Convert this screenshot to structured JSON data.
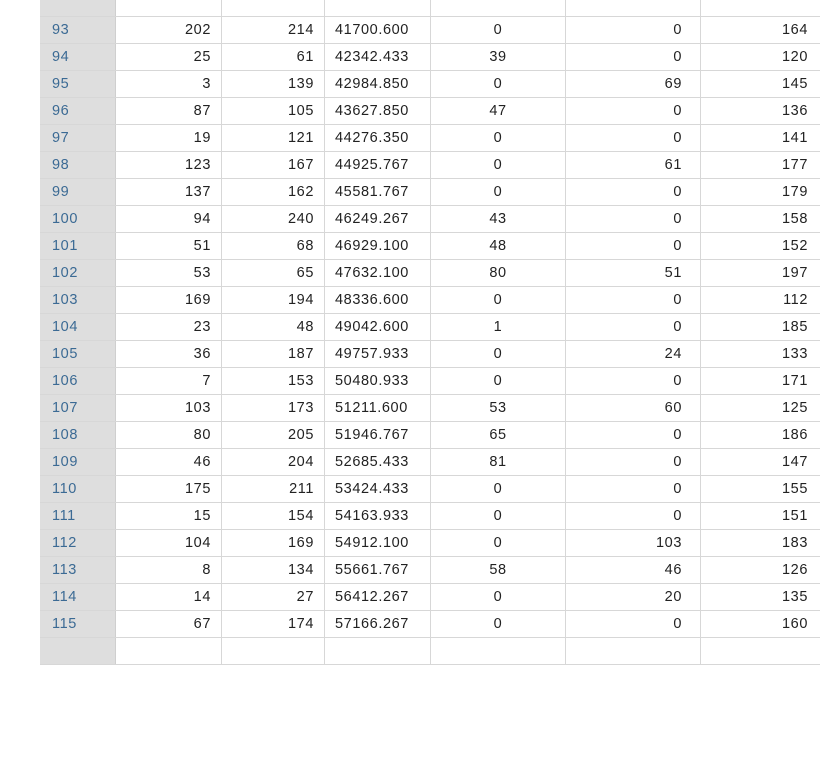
{
  "table": {
    "rows": [
      {
        "idx": "93",
        "a": "202",
        "b": "214",
        "c": "41700.600",
        "d": "0",
        "e": "0",
        "f": "164"
      },
      {
        "idx": "94",
        "a": "25",
        "b": "61",
        "c": "42342.433",
        "d": "39",
        "e": "0",
        "f": "120"
      },
      {
        "idx": "95",
        "a": "3",
        "b": "139",
        "c": "42984.850",
        "d": "0",
        "e": "69",
        "f": "145"
      },
      {
        "idx": "96",
        "a": "87",
        "b": "105",
        "c": "43627.850",
        "d": "47",
        "e": "0",
        "f": "136"
      },
      {
        "idx": "97",
        "a": "19",
        "b": "121",
        "c": "44276.350",
        "d": "0",
        "e": "0",
        "f": "141"
      },
      {
        "idx": "98",
        "a": "123",
        "b": "167",
        "c": "44925.767",
        "d": "0",
        "e": "61",
        "f": "177"
      },
      {
        "idx": "99",
        "a": "137",
        "b": "162",
        "c": "45581.767",
        "d": "0",
        "e": "0",
        "f": "179"
      },
      {
        "idx": "100",
        "a": "94",
        "b": "240",
        "c": "46249.267",
        "d": "43",
        "e": "0",
        "f": "158"
      },
      {
        "idx": "101",
        "a": "51",
        "b": "68",
        "c": "46929.100",
        "d": "48",
        "e": "0",
        "f": "152"
      },
      {
        "idx": "102",
        "a": "53",
        "b": "65",
        "c": "47632.100",
        "d": "80",
        "e": "51",
        "f": "197"
      },
      {
        "idx": "103",
        "a": "169",
        "b": "194",
        "c": "48336.600",
        "d": "0",
        "e": "0",
        "f": "112"
      },
      {
        "idx": "104",
        "a": "23",
        "b": "48",
        "c": "49042.600",
        "d": "1",
        "e": "0",
        "f": "185"
      },
      {
        "idx": "105",
        "a": "36",
        "b": "187",
        "c": "49757.933",
        "d": "0",
        "e": "24",
        "f": "133"
      },
      {
        "idx": "106",
        "a": "7",
        "b": "153",
        "c": "50480.933",
        "d": "0",
        "e": "0",
        "f": "171"
      },
      {
        "idx": "107",
        "a": "103",
        "b": "173",
        "c": "51211.600",
        "d": "53",
        "e": "60",
        "f": "125"
      },
      {
        "idx": "108",
        "a": "80",
        "b": "205",
        "c": "51946.767",
        "d": "65",
        "e": "0",
        "f": "186"
      },
      {
        "idx": "109",
        "a": "46",
        "b": "204",
        "c": "52685.433",
        "d": "81",
        "e": "0",
        "f": "147"
      },
      {
        "idx": "110",
        "a": "175",
        "b": "211",
        "c": "53424.433",
        "d": "0",
        "e": "0",
        "f": "155"
      },
      {
        "idx": "111",
        "a": "15",
        "b": "154",
        "c": "54163.933",
        "d": "0",
        "e": "0",
        "f": "151"
      },
      {
        "idx": "112",
        "a": "104",
        "b": "169",
        "c": "54912.100",
        "d": "0",
        "e": "103",
        "f": "183"
      },
      {
        "idx": "113",
        "a": "8",
        "b": "134",
        "c": "55661.767",
        "d": "58",
        "e": "46",
        "f": "126"
      },
      {
        "idx": "114",
        "a": "14",
        "b": "27",
        "c": "56412.267",
        "d": "0",
        "e": "20",
        "f": "135"
      },
      {
        "idx": "115",
        "a": "67",
        "b": "174",
        "c": "57166.267",
        "d": "0",
        "e": "0",
        "f": "160"
      }
    ]
  },
  "colors": {
    "index_bg": "#dedede",
    "index_text": "#3b6a94",
    "grid_line": "#d7d7d7",
    "cell_text": "#222222"
  }
}
